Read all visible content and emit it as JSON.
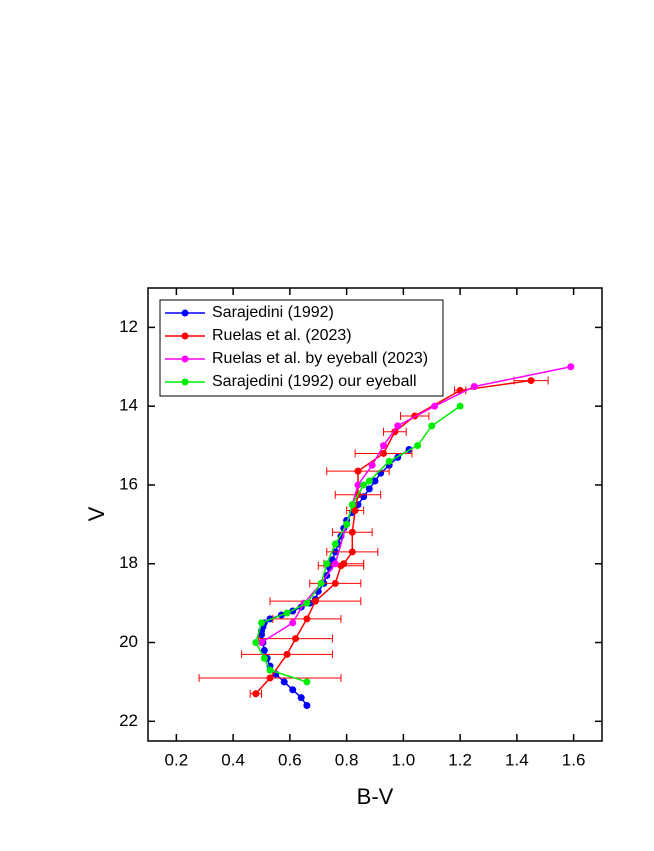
{
  "chart_data": {
    "type": "line",
    "x_label": "B-V",
    "y_label": "V",
    "xlim": [
      0.1,
      1.7
    ],
    "ylim": [
      22.5,
      11
    ],
    "xticks": [
      0.2,
      0.4,
      0.6,
      0.8,
      {
        "value": 1,
        "label": "1.0"
      },
      1.2,
      1.4,
      1.6
    ],
    "yticks": [
      12,
      14,
      16,
      18,
      20,
      22
    ],
    "legend": "top-left",
    "series": [
      {
        "name": "Sarajedini (1992)",
        "color": "#0000ff",
        "x": [
          0.66,
          0.64,
          0.61,
          0.58,
          0.55,
          0.53,
          0.52,
          0.51,
          0.505,
          0.5,
          0.5,
          0.505,
          0.51,
          0.53,
          0.57,
          0.61,
          0.64,
          0.67,
          0.69,
          0.7,
          0.72,
          0.73,
          0.74,
          0.75,
          0.76,
          0.77,
          0.78,
          0.79,
          0.8,
          0.82,
          0.84,
          0.86,
          0.88,
          0.9,
          0.92,
          0.95,
          0.98,
          1.02
        ],
        "values": [
          21.6,
          21.4,
          21.2,
          21.0,
          20.8,
          20.6,
          20.4,
          20.2,
          20.0,
          19.8,
          19.7,
          19.6,
          19.5,
          19.4,
          19.3,
          19.2,
          19.1,
          19.0,
          18.9,
          18.7,
          18.5,
          18.3,
          18.1,
          17.9,
          17.7,
          17.5,
          17.3,
          17.1,
          16.9,
          16.7,
          16.5,
          16.3,
          16.1,
          15.9,
          15.7,
          15.5,
          15.3,
          15.1
        ]
      },
      {
        "name": "Ruelas et al. (2023)",
        "color": "#ff0000",
        "x": [
          1.45,
          1.2,
          1.04,
          0.97,
          0.93,
          0.84,
          0.84,
          0.83,
          0.82,
          0.82,
          0.79,
          0.78,
          0.76,
          0.69,
          0.66,
          0.62,
          0.59,
          0.53,
          0.48
        ],
        "values": [
          13.35,
          13.6,
          14.25,
          14.65,
          15.2,
          15.65,
          16.25,
          16.65,
          17.2,
          17.7,
          18.0,
          18.05,
          18.5,
          18.95,
          19.4,
          19.9,
          20.3,
          20.9,
          21.3
        ],
        "xerr": [
          0.06,
          0.02,
          0.05,
          0.04,
          0.1,
          0.11,
          0.08,
          0.03,
          0.07,
          0.09,
          0.07,
          0.08,
          0.09,
          0.16,
          0.12,
          0.13,
          0.16,
          0.25,
          0.02
        ]
      },
      {
        "name": "Ruelas et al. by eyeball (2023)",
        "color": "#ff00ff",
        "x": [
          1.59,
          1.25,
          1.11,
          0.98,
          0.93,
          0.89,
          0.84,
          0.8,
          0.76,
          0.71,
          0.65,
          0.61,
          0.5
        ],
        "values": [
          13.0,
          13.5,
          14.0,
          14.5,
          15.0,
          15.5,
          16.0,
          17.0,
          18.0,
          18.5,
          19.0,
          19.5,
          20.0
        ]
      },
      {
        "name": "Sarajedini (1992) our eyeball",
        "color": "#00ee00",
        "x": [
          1.2,
          1.1,
          1.05,
          0.95,
          0.88,
          0.86,
          0.82,
          0.8,
          0.76,
          0.73,
          0.71,
          0.66,
          0.59,
          0.5,
          0.48,
          0.51,
          0.53,
          0.66
        ],
        "values": [
          14.0,
          14.5,
          15.0,
          15.4,
          15.9,
          16.0,
          16.5,
          17.0,
          17.5,
          18.0,
          18.5,
          19.0,
          19.25,
          19.5,
          20.0,
          20.4,
          20.7,
          21.0
        ]
      }
    ]
  }
}
